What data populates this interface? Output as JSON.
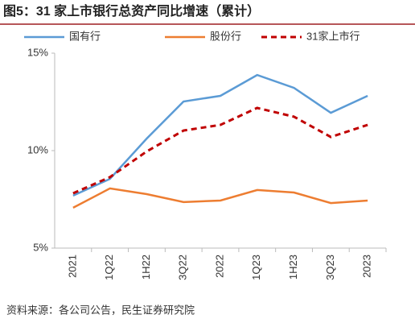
{
  "chart_data": {
    "type": "line",
    "title": "图5：31 家上市银行总资产同比增速（累计）",
    "source": "资料来源：各公司公告，民生证券研究院",
    "categories": [
      "2021",
      "1Q22",
      "1H22",
      "3Q22",
      "2022",
      "1Q23",
      "1H23",
      "3Q23",
      "2023"
    ],
    "series": [
      {
        "name": "国有行",
        "color": "#5b9bd5",
        "line_style": "solid",
        "values": [
          7.69,
          8.55,
          10.62,
          12.52,
          12.81,
          13.88,
          13.22,
          11.94,
          12.81
        ]
      },
      {
        "name": "股份行",
        "color": "#ed7d31",
        "line_style": "solid",
        "values": [
          7.07,
          8.06,
          7.77,
          7.36,
          7.44,
          7.98,
          7.85,
          7.31,
          7.44
        ]
      },
      {
        "name": "31家上市行",
        "color": "#c00000",
        "line_style": "dashed",
        "values": [
          7.81,
          8.64,
          9.96,
          11.03,
          11.32,
          12.19,
          11.74,
          10.7,
          11.32
        ]
      }
    ],
    "ylim": [
      5,
      15
    ],
    "yticks": [
      {
        "value": 5,
        "label": "5%"
      },
      {
        "value": 10,
        "label": "10%"
      },
      {
        "value": 15,
        "label": "15%"
      }
    ],
    "legend": "top"
  }
}
